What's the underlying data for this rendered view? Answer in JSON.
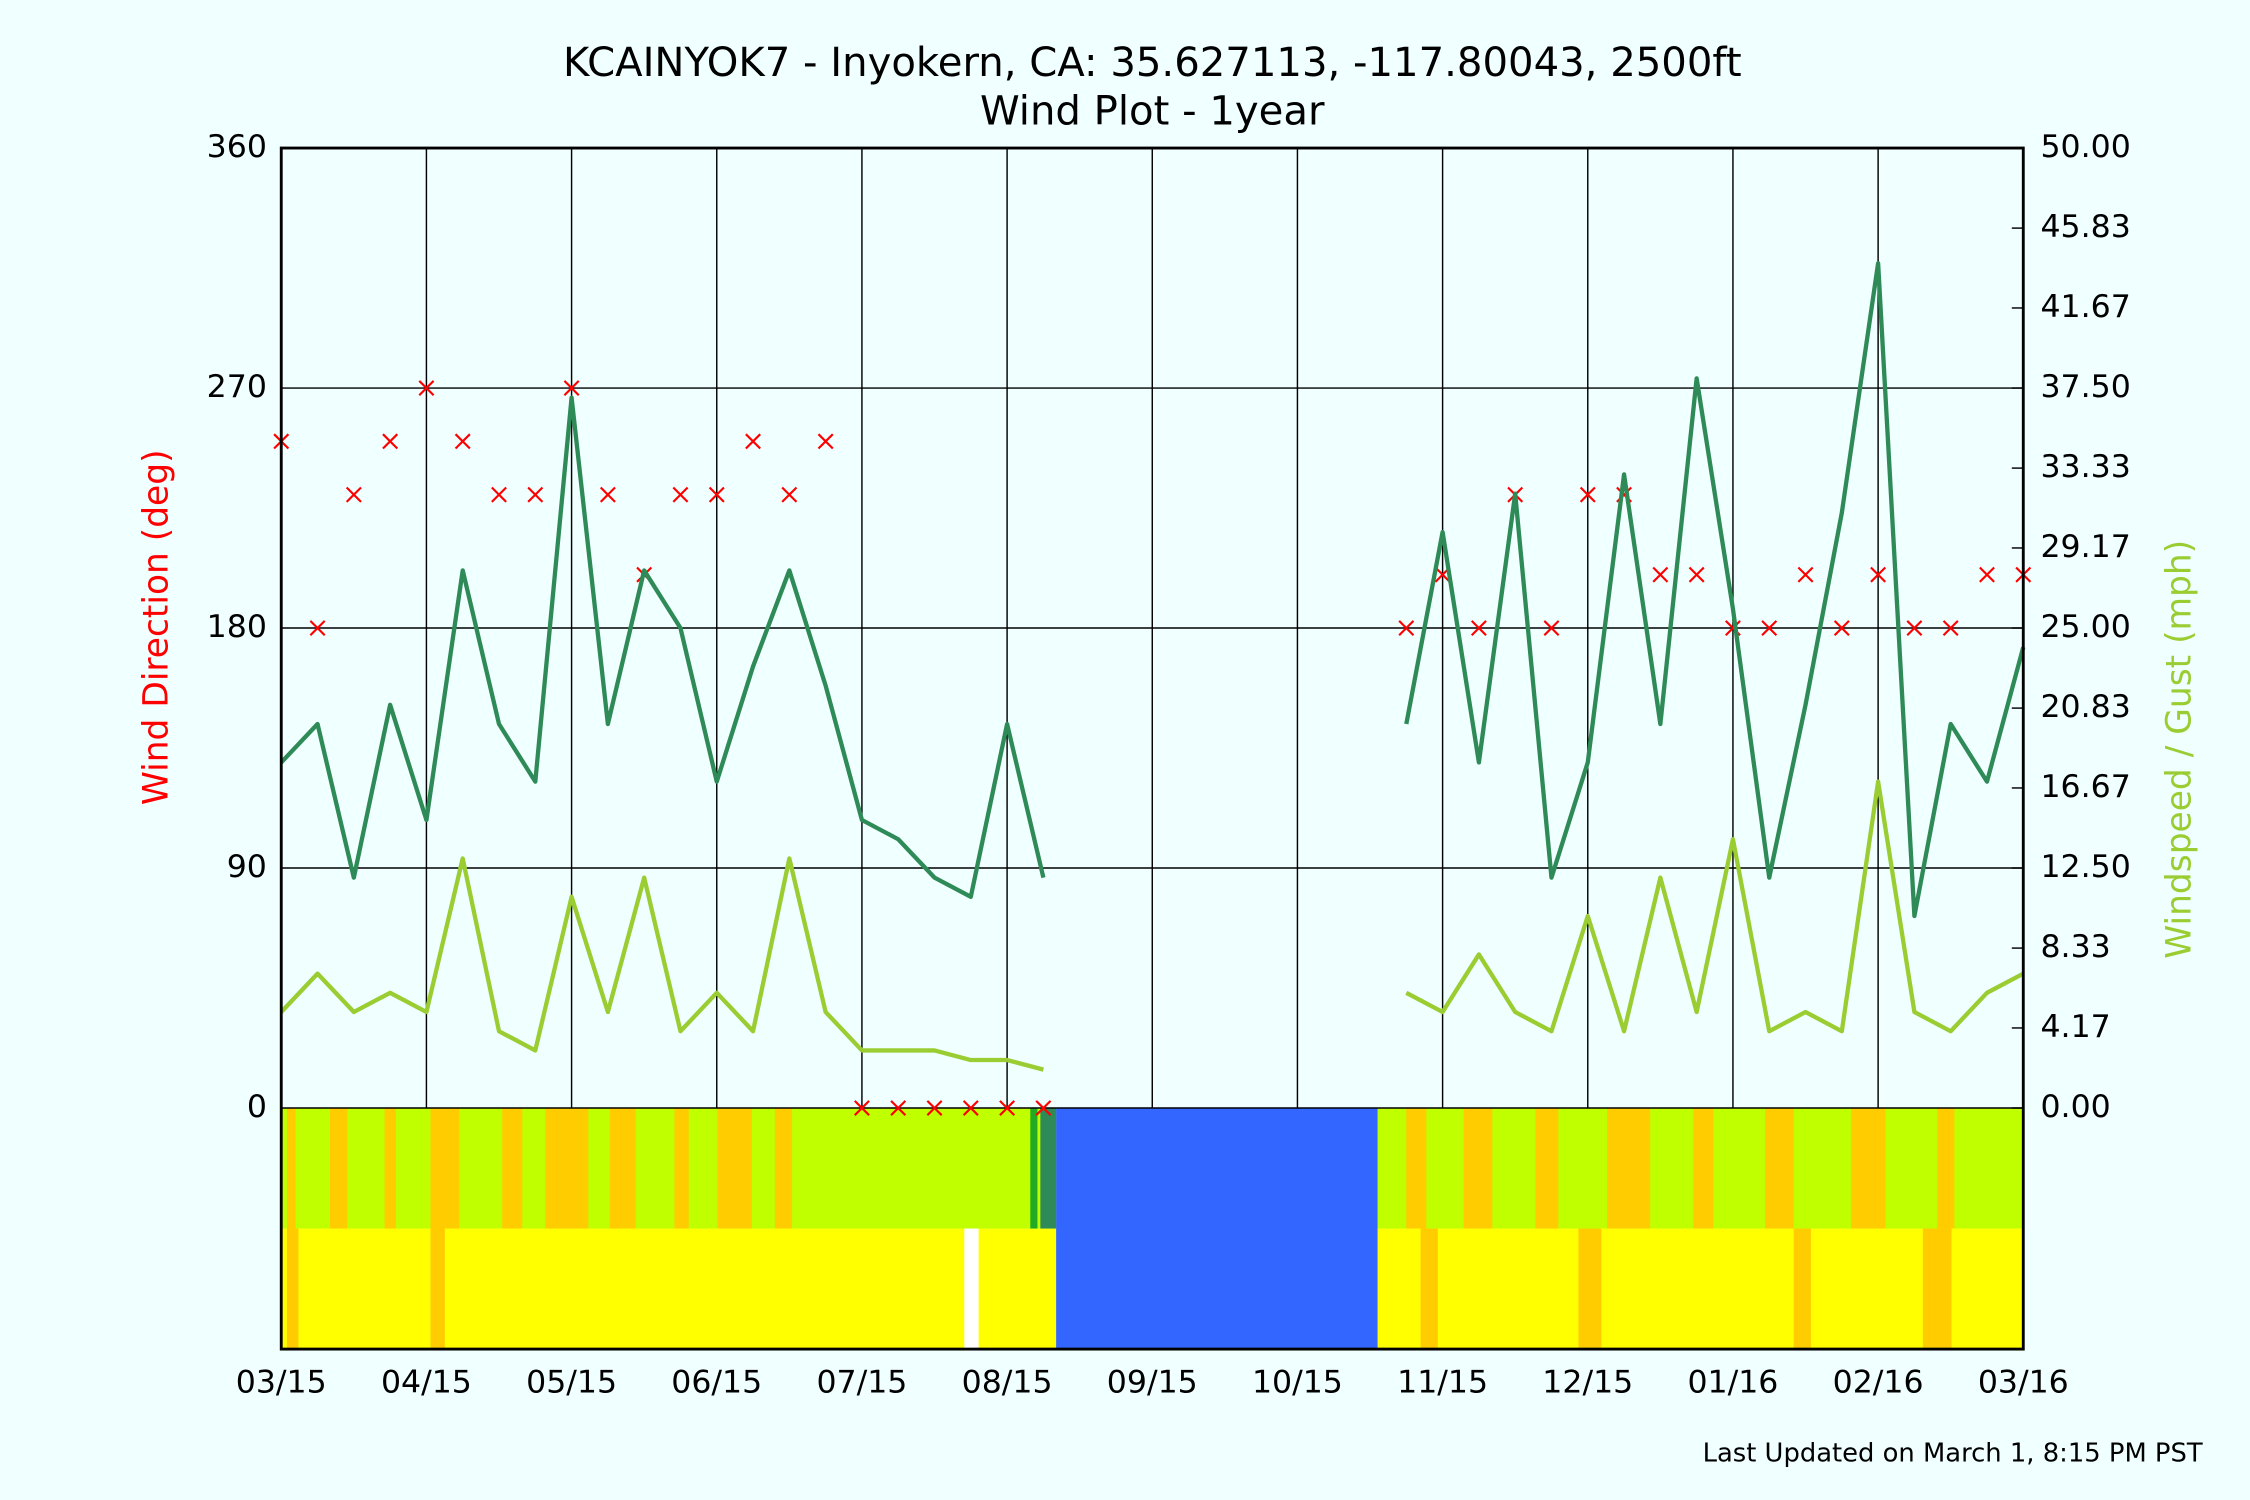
{
  "chart_data": {
    "type": "line",
    "title": "KCAINYOK7 - Inyokern, CA: 35.627113, -117.80043, 2500ft",
    "subtitle": "Wind Plot - 1year",
    "y_label": "Wind Direction (deg)",
    "y2_label": "Windspeed / Gust (mph)",
    "footer": "Last Updated on March 1, 8:15 PM PST",
    "xlim": [
      0,
      12
    ],
    "xticks": [
      {
        "value": 0,
        "label": "03/15"
      },
      {
        "value": 1,
        "label": "04/15"
      },
      {
        "value": 2,
        "label": "05/15"
      },
      {
        "value": 3,
        "label": "06/15"
      },
      {
        "value": 4,
        "label": "07/15"
      },
      {
        "value": 5,
        "label": "08/15"
      },
      {
        "value": 6,
        "label": "09/15"
      },
      {
        "value": 7,
        "label": "10/15"
      },
      {
        "value": 8,
        "label": "11/15"
      },
      {
        "value": 9,
        "label": "12/15"
      },
      {
        "value": 10,
        "label": "01/16"
      },
      {
        "value": 11,
        "label": "02/16"
      },
      {
        "value": 12,
        "label": "03/16"
      }
    ],
    "ylim": [
      0,
      360
    ],
    "yticks": [
      0,
      90,
      180,
      270,
      360
    ],
    "y2lim": [
      0,
      50
    ],
    "y2ticks": [
      {
        "value": 0,
        "label": "0.00"
      },
      4.17,
      8.33,
      {
        "value": 12.5,
        "label": "12.50"
      },
      16.67,
      20.83,
      {
        "value": 25,
        "label": "25.00"
      },
      29.17,
      33.33,
      {
        "value": 37.5,
        "label": "37.50"
      },
      41.67,
      45.83,
      {
        "value": 50,
        "label": "50.00"
      }
    ],
    "grid": true,
    "x": [
      0,
      0.25,
      0.5,
      0.75,
      1,
      1.25,
      1.5,
      1.75,
      2,
      2.25,
      2.5,
      2.75,
      3,
      3.25,
      3.5,
      3.75,
      4,
      4.25,
      4.5,
      4.75,
      5,
      5.25,
      5.5,
      5.75,
      6,
      6.25,
      6.5,
      6.75,
      7,
      7.25,
      7.5,
      7.75,
      8,
      8.25,
      8.5,
      8.75,
      9,
      9.25,
      9.5,
      9.75,
      10,
      10.25,
      10.5,
      10.75,
      11,
      11.25,
      11.5,
      11.75,
      12
    ],
    "series": [
      {
        "color": "#ff0000",
        "marker": "x",
        "values": [
          250,
          180,
          230,
          250,
          270,
          250,
          230,
          230,
          270,
          230,
          200,
          230,
          230,
          250,
          230,
          250,
          0,
          0,
          0,
          0,
          0,
          0,
          null,
          null,
          null,
          null,
          null,
          null,
          null,
          null,
          null,
          180,
          200,
          180,
          230,
          180,
          230,
          230,
          200,
          200,
          180,
          180,
          200,
          180,
          200,
          180,
          180,
          200,
          200
        ]
      },
      {
        "color": "#2e8b57",
        "axis": "y2",
        "values": [
          18,
          20,
          12,
          21,
          15,
          28,
          20,
          17,
          37,
          20,
          28,
          25,
          17,
          23,
          28,
          22,
          15,
          14,
          12,
          11,
          20,
          12,
          null,
          null,
          null,
          null,
          null,
          null,
          null,
          null,
          null,
          20,
          30,
          18,
          32,
          12,
          18,
          33,
          20,
          38,
          26,
          12,
          21,
          31,
          44,
          10,
          20,
          17,
          24
        ]
      },
      {
        "color": "#9acd32",
        "axis": "y2",
        "values": [
          5,
          7,
          5,
          6,
          5,
          13,
          4,
          3,
          11,
          5,
          12,
          4,
          6,
          4,
          13,
          5,
          3,
          3,
          3,
          2.5,
          2.5,
          2,
          null,
          null,
          null,
          null,
          null,
          null,
          null,
          null,
          null,
          6,
          5,
          8,
          5,
          4,
          10,
          4,
          12,
          5,
          14,
          4,
          5,
          4,
          17,
          5,
          4,
          6,
          7
        ]
      }
    ]
  }
}
